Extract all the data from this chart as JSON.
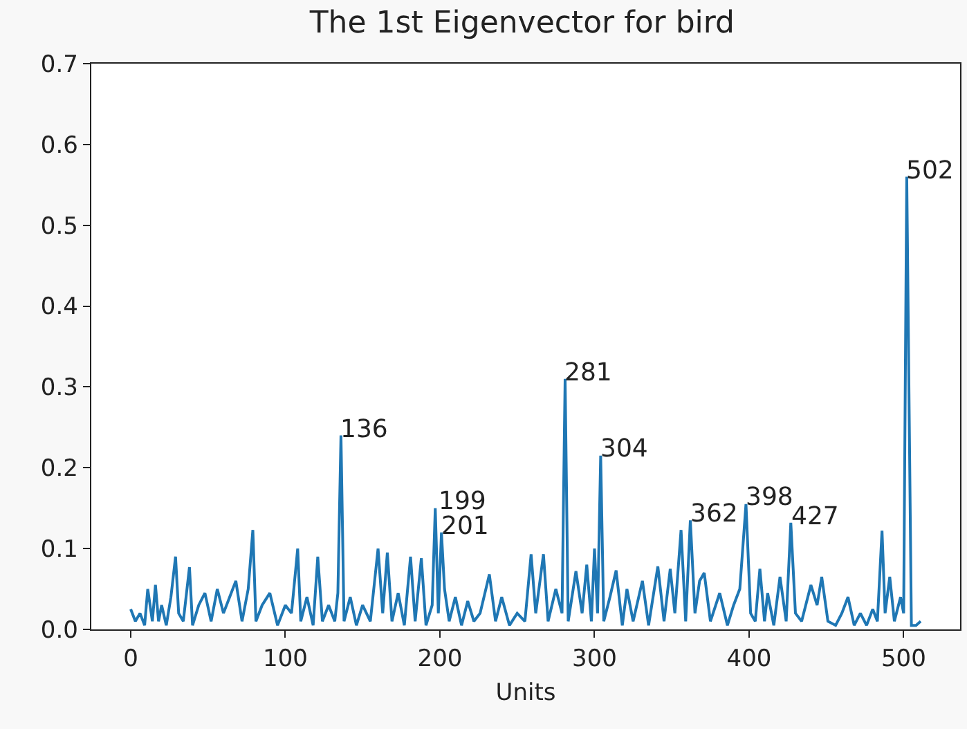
{
  "chart_data": {
    "type": "line",
    "title": "The 1st Eigenvector for bird",
    "xlabel": "Units",
    "x": [
      0,
      3,
      6,
      9,
      11,
      14,
      16,
      18,
      20,
      23,
      26,
      29,
      31,
      34,
      38,
      40,
      44,
      48,
      52,
      56,
      60,
      64,
      68,
      72,
      76,
      79,
      81,
      85,
      90,
      95,
      100,
      104,
      108,
      110,
      114,
      118,
      121,
      124,
      128,
      132,
      134,
      136,
      138,
      142,
      146,
      150,
      155,
      160,
      163,
      166,
      169,
      173,
      177,
      181,
      184,
      188,
      191,
      195,
      197,
      199,
      201,
      203,
      206,
      210,
      214,
      218,
      222,
      226,
      232,
      236,
      240,
      245,
      250,
      255,
      259,
      262,
      267,
      270,
      275,
      279,
      281,
      283,
      288,
      292,
      295,
      298,
      300,
      302,
      304,
      306,
      310,
      314,
      318,
      321,
      325,
      331,
      335,
      341,
      345,
      349,
      352,
      356,
      359,
      362,
      365,
      368,
      371,
      375,
      381,
      386,
      390,
      394,
      398,
      401,
      404,
      407,
      410,
      412,
      416,
      420,
      424,
      427,
      430,
      434,
      440,
      444,
      447,
      451,
      456,
      460,
      464,
      468,
      472,
      476,
      480,
      483,
      486,
      488,
      491,
      494,
      498,
      500,
      502,
      505,
      508,
      511
    ],
    "series": [
      {
        "color": "#1f77b4",
        "values": [
          0.025,
          0.01,
          0.02,
          0.005,
          0.05,
          0.01,
          0.055,
          0.01,
          0.03,
          0.005,
          0.04,
          0.09,
          0.02,
          0.01,
          0.077,
          0.005,
          0.03,
          0.045,
          0.01,
          0.05,
          0.02,
          0.04,
          0.06,
          0.01,
          0.05,
          0.123,
          0.01,
          0.03,
          0.045,
          0.005,
          0.03,
          0.02,
          0.1,
          0.01,
          0.04,
          0.005,
          0.09,
          0.01,
          0.03,
          0.01,
          0.045,
          0.24,
          0.01,
          0.04,
          0.005,
          0.03,
          0.01,
          0.1,
          0.02,
          0.095,
          0.01,
          0.045,
          0.005,
          0.09,
          0.01,
          0.088,
          0.005,
          0.03,
          0.15,
          0.02,
          0.12,
          0.05,
          0.01,
          0.04,
          0.005,
          0.035,
          0.01,
          0.02,
          0.068,
          0.01,
          0.04,
          0.005,
          0.02,
          0.01,
          0.093,
          0.02,
          0.093,
          0.01,
          0.05,
          0.02,
          0.31,
          0.01,
          0.072,
          0.02,
          0.08,
          0.01,
          0.1,
          0.02,
          0.215,
          0.01,
          0.04,
          0.073,
          0.005,
          0.05,
          0.01,
          0.06,
          0.005,
          0.078,
          0.01,
          0.075,
          0.02,
          0.123,
          0.01,
          0.135,
          0.02,
          0.06,
          0.07,
          0.01,
          0.045,
          0.005,
          0.03,
          0.05,
          0.155,
          0.02,
          0.01,
          0.075,
          0.01,
          0.045,
          0.005,
          0.065,
          0.01,
          0.132,
          0.02,
          0.01,
          0.055,
          0.03,
          0.065,
          0.01,
          0.005,
          0.02,
          0.04,
          0.005,
          0.02,
          0.005,
          0.025,
          0.01,
          0.122,
          0.02,
          0.065,
          0.01,
          0.04,
          0.02,
          0.56,
          0.005,
          0.005,
          0.01
        ]
      }
    ],
    "annotations": [
      {
        "text": "136",
        "x": 136,
        "y": 0.24
      },
      {
        "text": "199",
        "x": 199,
        "y": 0.15
      },
      {
        "text": "201",
        "x": 201,
        "y": 0.12
      },
      {
        "text": "281",
        "x": 281,
        "y": 0.31
      },
      {
        "text": "304",
        "x": 304,
        "y": 0.215
      },
      {
        "text": "362",
        "x": 362,
        "y": 0.135
      },
      {
        "text": "398",
        "x": 398,
        "y": 0.155
      },
      {
        "text": "427",
        "x": 427,
        "y": 0.132
      },
      {
        "text": "502",
        "x": 502,
        "y": 0.56
      }
    ],
    "xlim": [
      -25.5,
      536.5
    ],
    "xticks": [
      0,
      100,
      200,
      300,
      400,
      500
    ],
    "ylim": [
      0,
      0.7
    ],
    "yticks": [
      {
        "value": 0,
        "label": "0.0"
      },
      {
        "value": 0.1,
        "label": "0.1"
      },
      {
        "value": 0.2,
        "label": "0.2"
      },
      {
        "value": 0.3,
        "label": "0.3"
      },
      {
        "value": 0.4,
        "label": "0.4"
      },
      {
        "value": 0.5,
        "label": "0.5"
      },
      {
        "value": 0.6,
        "label": "0.6"
      },
      {
        "value": 0.7,
        "label": "0.7"
      }
    ]
  }
}
